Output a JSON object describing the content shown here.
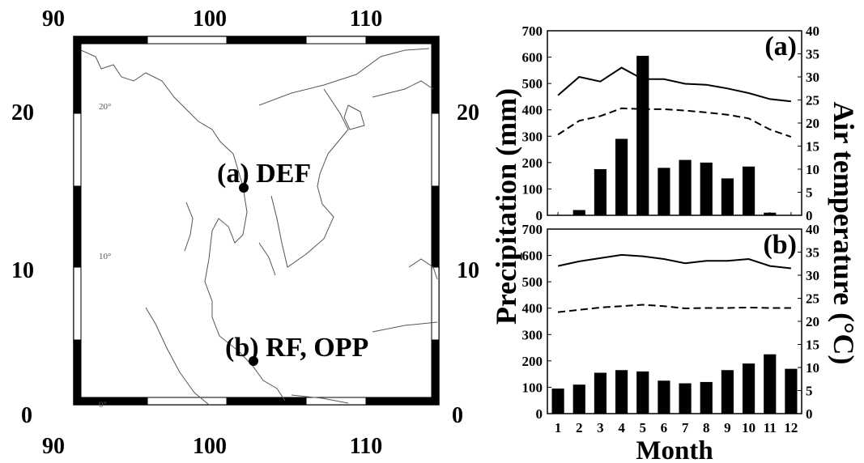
{
  "map": {
    "top_ticks": [
      "90",
      "100",
      "110"
    ],
    "bottom_ticks": [
      "90",
      "100",
      "110"
    ],
    "left_ticks": [
      "20",
      "10",
      "0"
    ],
    "right_ticks": [
      "20",
      "10",
      "0"
    ],
    "inner_lat_labels": [
      "20°",
      "10°",
      "0°"
    ],
    "sites": [
      {
        "label": "(a) DEF"
      },
      {
        "label": "(b) RF, OPP"
      }
    ]
  },
  "chart_data": [
    {
      "type": "bar",
      "panel_label": "(a)",
      "categories": [
        "1",
        "2",
        "3",
        "4",
        "5",
        "6",
        "7",
        "8",
        "9",
        "10",
        "11",
        "12"
      ],
      "series": [
        {
          "values": [
            0,
            20,
            175,
            290,
            605,
            180,
            210,
            200,
            140,
            185,
            10,
            0
          ]
        },
        {
          "values": [
            26,
            30,
            29,
            32,
            29.5,
            29.5,
            28.5,
            28.3,
            27.5,
            26.5,
            25.2,
            24.7
          ]
        },
        {
          "values": [
            17.5,
            20.5,
            21.5,
            23.2,
            23,
            23,
            22.7,
            22.3,
            21.8,
            21,
            18.6,
            17
          ]
        }
      ],
      "ylim_left": [
        0,
        700
      ],
      "ylim_right": [
        0,
        40
      ],
      "left_ticks": [
        "700",
        "600",
        "500",
        "400",
        "300",
        "200",
        "100",
        "0"
      ],
      "right_ticks": [
        "40",
        "35",
        "30",
        "25",
        "20",
        "15",
        "10",
        "5",
        "0"
      ]
    },
    {
      "type": "bar",
      "panel_label": "(b)",
      "categories": [
        "1",
        "2",
        "3",
        "4",
        "5",
        "6",
        "7",
        "8",
        "9",
        "10",
        "11",
        "12"
      ],
      "series": [
        {
          "values": [
            95,
            110,
            155,
            165,
            160,
            125,
            115,
            120,
            165,
            190,
            225,
            170
          ]
        },
        {
          "values": [
            32,
            33,
            33.7,
            34.4,
            34.1,
            33.5,
            32.6,
            33.1,
            33.1,
            33.5,
            32,
            31.5
          ]
        },
        {
          "values": [
            22,
            22.5,
            23,
            23.3,
            23.6,
            23.3,
            22.8,
            22.9,
            22.9,
            23,
            22.9,
            22.9
          ]
        }
      ],
      "ylim_left": [
        0,
        700
      ],
      "ylim_right": [
        0,
        40
      ],
      "left_ticks": [
        "700",
        "600",
        "500",
        "400",
        "300",
        "200",
        "100",
        "0"
      ],
      "right_ticks": [
        "40",
        "35",
        "30",
        "25",
        "20",
        "15",
        "10",
        "5",
        "0"
      ]
    }
  ],
  "axes": {
    "ylabel_left": "Precipitation (mm)",
    "ylabel_right": "Air temperature (°C)",
    "xlabel": "Month"
  }
}
